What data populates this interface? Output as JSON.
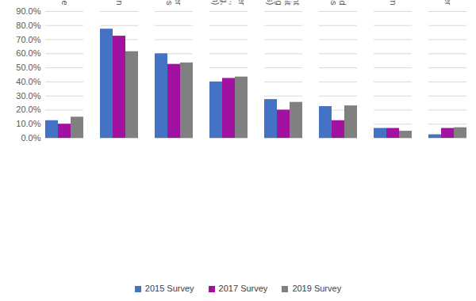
{
  "chart_data": {
    "type": "bar",
    "categories": [
      "None",
      "Providing Traveler Information",
      "Coordination with Other Jurisdictions / Agencies",
      "Supporting Non-Winter Maintenance Activities (e.g., Maintenance Scheduling, Construction Coordination)",
      "Traffic Control and Management (e.g., Speed Limit Determination, Signal Timing Plans, Ramp Metering Rates)",
      "Setting Seasonal Load Restrictions",
      "Not Sure / Unknown",
      "Other"
    ],
    "series": [
      {
        "name": "2015 Survey",
        "color": "#4472c4",
        "values": [
          12.5,
          77.5,
          60,
          40,
          27.5,
          22.5,
          7,
          2.5
        ]
      },
      {
        "name": "2017 Survey",
        "color": "#a0129f",
        "values": [
          10,
          72.5,
          52.5,
          42.5,
          20,
          12.5,
          7,
          7
        ]
      },
      {
        "name": "2019 Survey",
        "color": "#808080",
        "values": [
          15,
          61.5,
          53.5,
          43.5,
          25.5,
          23,
          5,
          7.5
        ]
      }
    ],
    "ylim": [
      0,
      90
    ],
    "yticks": [
      {
        "value": 0,
        "label": "0.0%"
      },
      {
        "value": 10,
        "label": "10.0%"
      },
      {
        "value": 20,
        "label": "20.0%"
      },
      {
        "value": 30,
        "label": "30.0%"
      },
      {
        "value": 40,
        "label": "40.0%"
      },
      {
        "value": 50,
        "label": "50.0%"
      },
      {
        "value": 60,
        "label": "60.0%"
      },
      {
        "value": 70,
        "label": "70.0%"
      },
      {
        "value": 80,
        "label": "80.0%"
      },
      {
        "value": 90,
        "label": "90.0%"
      }
    ],
    "grid": true,
    "legend": "bottom"
  }
}
